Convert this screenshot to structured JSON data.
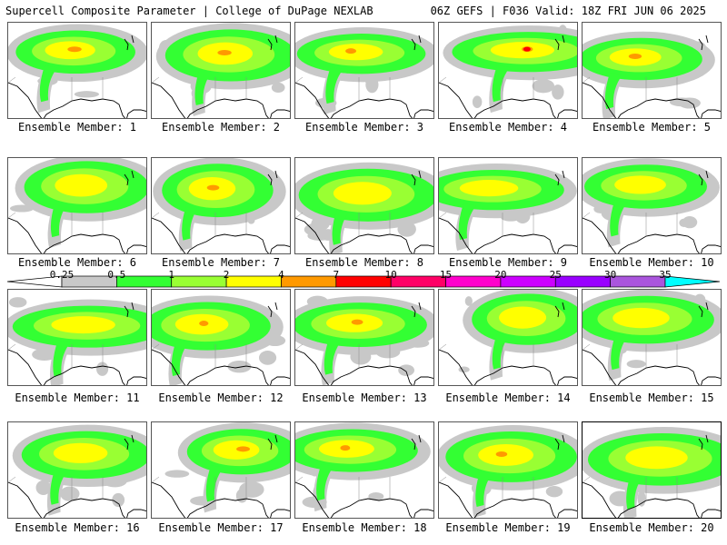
{
  "header": {
    "title": "Supercell Composite Parameter | College of DuPage NEXLAB",
    "run_info": "06Z GEFS | F036 Valid: 18Z FRI JUN 06 2025"
  },
  "panels": [
    {
      "label": "Ensemble Member: 1"
    },
    {
      "label": "Ensemble Member: 2"
    },
    {
      "label": "Ensemble Member: 3"
    },
    {
      "label": "Ensemble Member: 4"
    },
    {
      "label": "Ensemble Member: 5"
    },
    {
      "label": "Ensemble Member: 6"
    },
    {
      "label": "Ensemble Member: 7"
    },
    {
      "label": "Ensemble Member: 8"
    },
    {
      "label": "Ensemble Member: 9"
    },
    {
      "label": "Ensemble Member: 10"
    },
    {
      "label": "Ensemble Member: 11"
    },
    {
      "label": "Ensemble Member: 12"
    },
    {
      "label": "Ensemble Member: 13"
    },
    {
      "label": "Ensemble Member: 14"
    },
    {
      "label": "Ensemble Member: 15"
    },
    {
      "label": "Ensemble Member: 16"
    },
    {
      "label": "Ensemble Member: 17"
    },
    {
      "label": "Ensemble Member: 18"
    },
    {
      "label": "Ensemble Member: 19"
    },
    {
      "label": "Ensemble Member: 20"
    }
  ],
  "selected_panel": "Ensemble Member: 20",
  "legend": {
    "ticks": [
      "0.25",
      "0.5",
      "1",
      "2",
      "4",
      "7",
      "10",
      "15",
      "20",
      "25",
      "30",
      "35"
    ],
    "colors": [
      "#ffffff",
      "#c8c8c8",
      "#33ff33",
      "#99ff33",
      "#ffff00",
      "#ff9900",
      "#ff0000",
      "#ff0066",
      "#ff00cc",
      "#cc00ff",
      "#9900ff",
      "#aa55dd",
      "#00ffff"
    ]
  },
  "colors": {
    "outline_gray": "#c8c8c8",
    "green": "#33ff33",
    "light_green": "#99ff33",
    "yellow": "#ffff00",
    "orange": "#ff9900",
    "red": "#ff0000"
  }
}
